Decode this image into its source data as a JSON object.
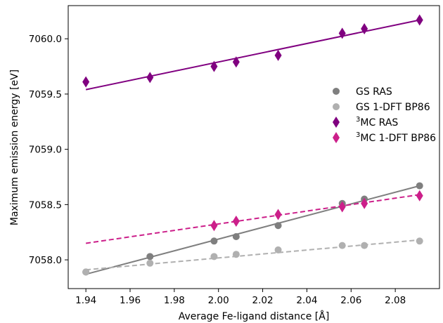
{
  "chart_data": {
    "type": "scatter",
    "xlabel": "Average Fe-ligand distance [Å]",
    "ylabel": "Maximum emission energy [eV]",
    "xlim": [
      1.932,
      2.1
    ],
    "ylim": [
      7057.74,
      7060.3
    ],
    "xticks": [
      "1.94",
      "1.96",
      "1.98",
      "2.00",
      "2.02",
      "2.04",
      "2.06",
      "2.08"
    ],
    "yticks": [
      "7058.0",
      "7058.5",
      "7059.0",
      "7059.5",
      "7060.0"
    ],
    "legend_position": "right",
    "series": [
      {
        "name": "GS RAS",
        "label_parts": [
          "GS RAS"
        ],
        "marker": "circle",
        "color": "#7f7f7f",
        "fit_style": "solid",
        "points": [
          {
            "x": 1.94,
            "y": 7057.89
          },
          {
            "x": 1.969,
            "y": 7058.03
          },
          {
            "x": 1.998,
            "y": 7058.17
          },
          {
            "x": 2.008,
            "y": 7058.21
          },
          {
            "x": 2.027,
            "y": 7058.31
          },
          {
            "x": 2.056,
            "y": 7058.51
          },
          {
            "x": 2.066,
            "y": 7058.55
          },
          {
            "x": 2.091,
            "y": 7058.67
          }
        ],
        "fit": [
          {
            "x": 1.94,
            "y": 7057.87
          },
          {
            "x": 2.091,
            "y": 7058.67
          }
        ]
      },
      {
        "name": "GS 1-DFT BP86",
        "label_parts": [
          "GS 1-DFT BP86"
        ],
        "marker": "circle",
        "color": "#b0b0b0",
        "fit_style": "dashed",
        "points": [
          {
            "x": 1.94,
            "y": 7057.89
          },
          {
            "x": 1.969,
            "y": 7057.97
          },
          {
            "x": 1.998,
            "y": 7058.03
          },
          {
            "x": 2.008,
            "y": 7058.05
          },
          {
            "x": 2.027,
            "y": 7058.09
          },
          {
            "x": 2.056,
            "y": 7058.13
          },
          {
            "x": 2.066,
            "y": 7058.13
          },
          {
            "x": 2.091,
            "y": 7058.17
          }
        ],
        "fit": [
          {
            "x": 1.94,
            "y": 7057.91
          },
          {
            "x": 2.091,
            "y": 7058.18
          }
        ]
      },
      {
        "name": "3MC RAS",
        "label_parts": [
          "3",
          "MC RAS"
        ],
        "marker": "diamond",
        "color": "#800080",
        "fit_style": "solid",
        "points": [
          {
            "x": 1.94,
            "y": 7059.61
          },
          {
            "x": 1.969,
            "y": 7059.65
          },
          {
            "x": 1.998,
            "y": 7059.75
          },
          {
            "x": 2.008,
            "y": 7059.79
          },
          {
            "x": 2.027,
            "y": 7059.85
          },
          {
            "x": 2.056,
            "y": 7060.05
          },
          {
            "x": 2.066,
            "y": 7060.09
          },
          {
            "x": 2.091,
            "y": 7060.17
          }
        ],
        "fit": [
          {
            "x": 1.94,
            "y": 7059.54
          },
          {
            "x": 2.091,
            "y": 7060.17
          }
        ]
      },
      {
        "name": "3MC 1-DFT BP86",
        "label_parts": [
          "3",
          "MC 1-DFT BP86"
        ],
        "marker": "diamond",
        "color": "#cc1f8a",
        "fit_style": "dashed",
        "points": [
          {
            "x": 1.998,
            "y": 7058.31
          },
          {
            "x": 2.008,
            "y": 7058.35
          },
          {
            "x": 2.027,
            "y": 7058.41
          },
          {
            "x": 2.056,
            "y": 7058.48
          },
          {
            "x": 2.066,
            "y": 7058.51
          },
          {
            "x": 2.091,
            "y": 7058.58
          }
        ],
        "fit": [
          {
            "x": 1.94,
            "y": 7058.15
          },
          {
            "x": 2.091,
            "y": 7058.59
          }
        ]
      }
    ]
  }
}
